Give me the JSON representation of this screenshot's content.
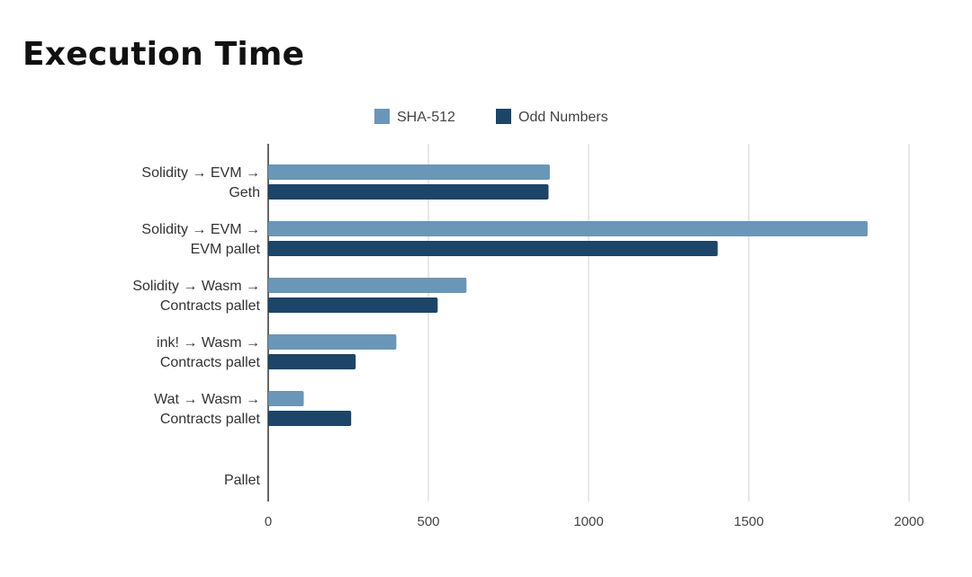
{
  "chart_data": {
    "type": "bar",
    "orientation": "horizontal",
    "title": "Execution Time",
    "categories": [
      [
        "Solidity → EVM →",
        "Geth"
      ],
      [
        "Solidity → EVM →",
        "EVM pallet"
      ],
      [
        "Solidity → Wasm →",
        "Contracts pallet"
      ],
      [
        "ink! → Wasm →",
        "Contracts pallet"
      ],
      [
        "Wat → Wasm →",
        "Contracts pallet"
      ],
      [
        "",
        "Pallet"
      ]
    ],
    "series": [
      {
        "name": "SHA-512",
        "color": "#6a96b8",
        "values": [
          879,
          1871,
          619,
          400,
          111,
          null
        ]
      },
      {
        "name": "Odd Numbers",
        "color": "#1c4568",
        "values": [
          875,
          1403,
          529,
          273,
          259,
          null
        ]
      }
    ],
    "xlim": [
      0,
      2000
    ],
    "xticks": [
      "0",
      "500",
      "1000",
      "1500",
      "2000"
    ],
    "grid": true,
    "legend": "top"
  }
}
